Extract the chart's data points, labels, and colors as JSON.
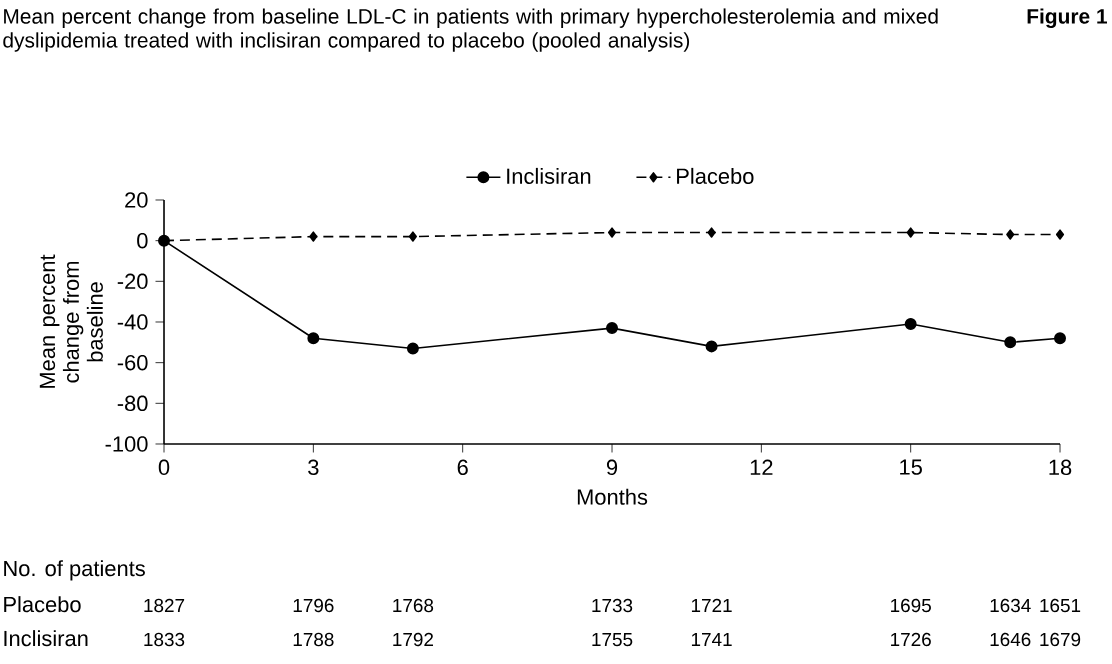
{
  "chart_data": {
    "type": "line",
    "title": "Mean percent change from baseline LDL-C in patients with primary hypercholesterolemia and mixed dyslipidemia treated with inclisiran compared to placebo (pooled analysis)",
    "xlabel": "Months",
    "ylabel": "Mean percent change from baseline",
    "x": [
      0,
      3,
      5,
      9,
      11,
      15,
      17,
      18
    ],
    "series": [
      {
        "name": "Inclisiran",
        "color": "#000000",
        "marker": "circle",
        "line_style": "solid",
        "values": [
          0,
          -48,
          -53,
          -43,
          -52,
          -41,
          -50,
          -48
        ]
      },
      {
        "name": "Placebo",
        "color": "#000000",
        "marker": "diamond",
        "line_style": "dashed",
        "values": [
          0,
          2,
          2,
          4,
          4,
          4,
          3,
          3
        ]
      }
    ],
    "xlim": [
      0,
      18
    ],
    "xticks": [
      0,
      3,
      6,
      9,
      12,
      15,
      18
    ],
    "ylim": [
      -100,
      20
    ],
    "yticks": [
      -100,
      -80,
      -60,
      -40,
      -20,
      0,
      20
    ],
    "legend": "top",
    "grid": false,
    "annotations": [
      "Figure 1",
      "No. of patients",
      "Placebo",
      "1827",
      "1796",
      "1768",
      "1733",
      "1721",
      "1695",
      "1634",
      "1651",
      "Inclisiran",
      "1833",
      "1788",
      "1792",
      "1755",
      "1741",
      "1726",
      "1646",
      "1679"
    ]
  }
}
